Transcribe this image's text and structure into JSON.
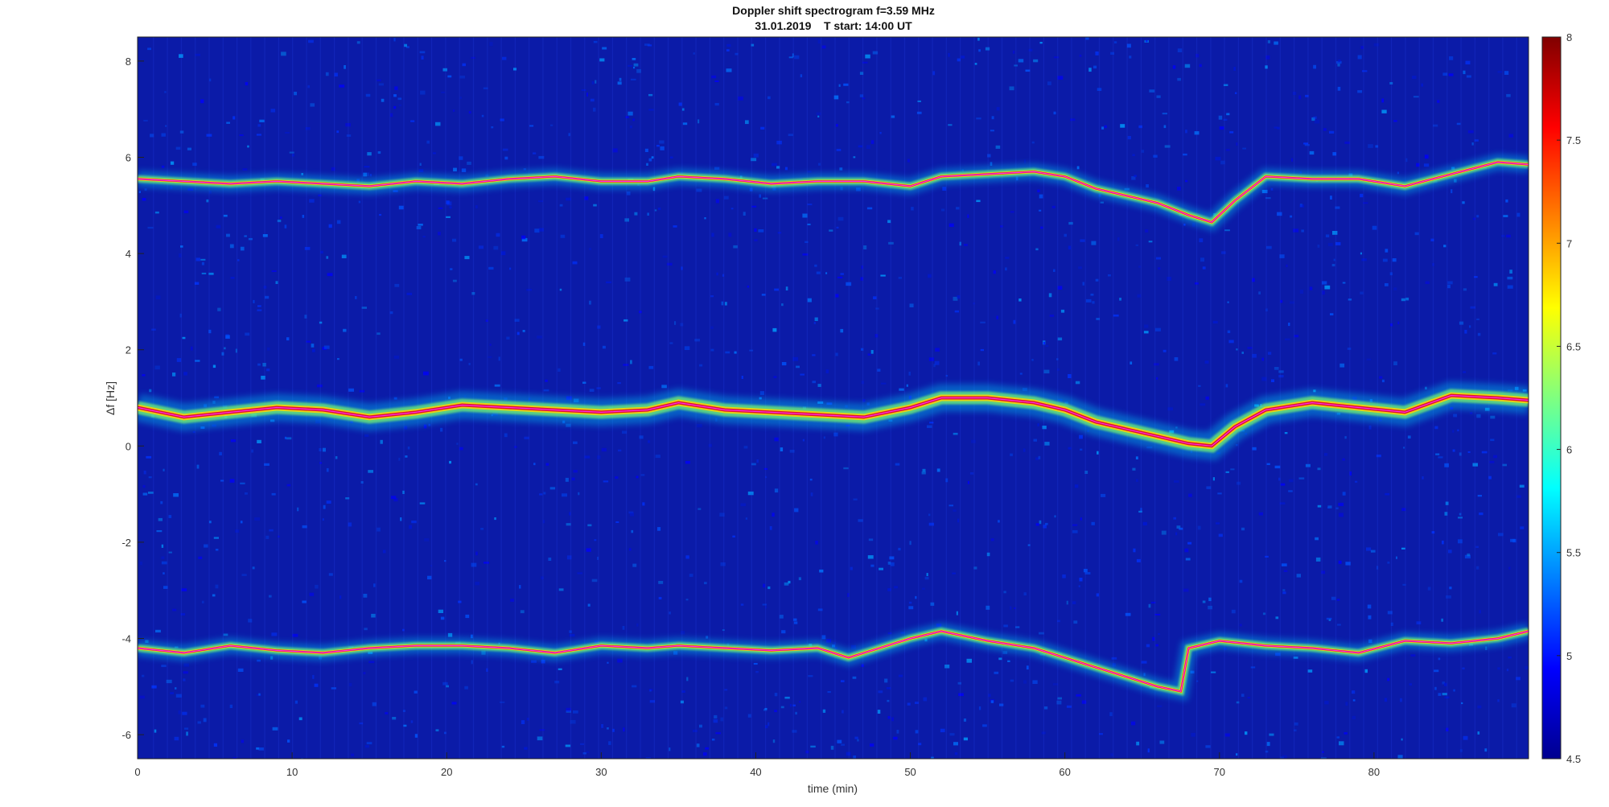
{
  "chart_data": {
    "type": "heatmap",
    "title": "Doppler shift spectrogram f=3.59 MHz",
    "subtitle": "31.01.2019    T start: 14:00 UT",
    "xlabel": "time (min)",
    "ylabel": "Δf [Hz]",
    "xlim": [
      0,
      90
    ],
    "ylim": [
      -6.5,
      8.5
    ],
    "xticks": [
      0,
      10,
      20,
      30,
      40,
      50,
      60,
      70,
      80
    ],
    "yticks": [
      -6,
      -4,
      -2,
      0,
      2,
      4,
      6,
      8
    ],
    "colormap": "jet",
    "colorbar": {
      "range": [
        4.5,
        8
      ],
      "ticks": [
        4.5,
        5,
        5.5,
        6,
        6.5,
        7,
        7.5,
        8
      ]
    },
    "series": [
      {
        "x": [
          0,
          3,
          6,
          9,
          12,
          15,
          18,
          21,
          24,
          27,
          30,
          33,
          35,
          38,
          41,
          44,
          47,
          50,
          52,
          55,
          58,
          60,
          62,
          64,
          66,
          68,
          69.5,
          71,
          73,
          76,
          79,
          82,
          85,
          88,
          90
        ],
        "y": [
          5.55,
          5.5,
          5.45,
          5.5,
          5.45,
          5.4,
          5.5,
          5.45,
          5.55,
          5.6,
          5.5,
          5.5,
          5.6,
          5.55,
          5.45,
          5.5,
          5.5,
          5.4,
          5.6,
          5.65,
          5.7,
          5.6,
          5.35,
          5.2,
          5.05,
          4.8,
          4.65,
          5.1,
          5.6,
          5.55,
          5.55,
          5.4,
          5.65,
          5.9,
          5.85
        ]
      },
      {
        "x": [
          0,
          3,
          6,
          9,
          12,
          15,
          18,
          21,
          24,
          27,
          30,
          33,
          35,
          38,
          41,
          44,
          47,
          50,
          52,
          55,
          58,
          60,
          62,
          64,
          66,
          68,
          69.5,
          71,
          73,
          76,
          79,
          82,
          85,
          88,
          90
        ],
        "y": [
          0.8,
          0.6,
          0.7,
          0.8,
          0.75,
          0.6,
          0.7,
          0.85,
          0.8,
          0.75,
          0.7,
          0.75,
          0.9,
          0.75,
          0.7,
          0.65,
          0.6,
          0.8,
          1.0,
          1.0,
          0.9,
          0.75,
          0.5,
          0.35,
          0.2,
          0.05,
          0.0,
          0.4,
          0.75,
          0.9,
          0.8,
          0.7,
          1.05,
          1.0,
          0.95
        ]
      },
      {
        "x": [
          0,
          3,
          6,
          9,
          12,
          15,
          18,
          21,
          24,
          27,
          30,
          33,
          35,
          38,
          41,
          44,
          46,
          48,
          50,
          52,
          55,
          58,
          60,
          62,
          64,
          66,
          67.5,
          68,
          70,
          73,
          76,
          79,
          82,
          85,
          88,
          90
        ],
        "y": [
          -4.2,
          -4.3,
          -4.15,
          -4.25,
          -4.3,
          -4.2,
          -4.15,
          -4.15,
          -4.2,
          -4.3,
          -4.15,
          -4.2,
          -4.15,
          -4.2,
          -4.25,
          -4.2,
          -4.4,
          -4.2,
          -4.0,
          -3.85,
          -4.05,
          -4.2,
          -4.4,
          -4.6,
          -4.8,
          -5.0,
          -5.1,
          -4.2,
          -4.05,
          -4.15,
          -4.2,
          -4.3,
          -4.05,
          -4.1,
          -4.0,
          -3.85
        ]
      }
    ]
  }
}
